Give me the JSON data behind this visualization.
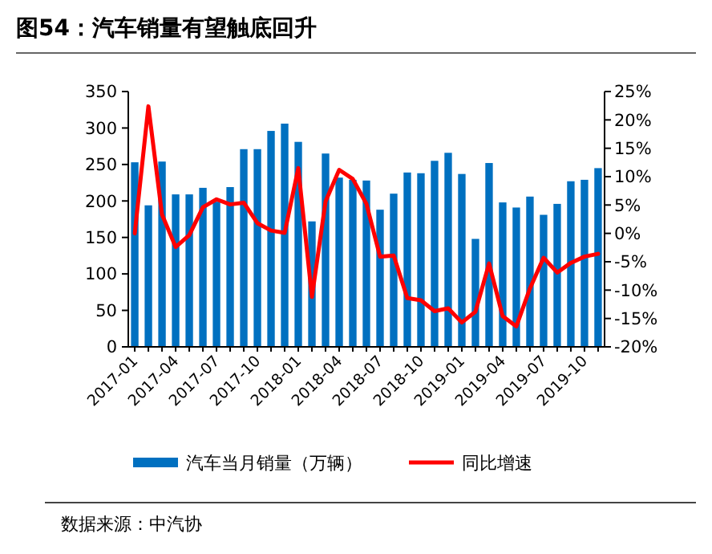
{
  "chart_data": {
    "type": "bar",
    "title": "图54：汽车销量有望触底回升",
    "categories": [
      "2017-01",
      null,
      null,
      "2017-04",
      null,
      null,
      "2017-07",
      null,
      null,
      "2017-10",
      null,
      null,
      "2018-01",
      null,
      null,
      "2018-04",
      null,
      null,
      "2018-07",
      null,
      null,
      "2018-10",
      null,
      null,
      "2019-01",
      null,
      null,
      "2019-04",
      null,
      null,
      "2019-07",
      null,
      null,
      "2019-10",
      null
    ],
    "series": [
      {
        "name": "汽车当月销量（万辆）",
        "color": "#0070c0",
        "values": [
          253,
          194,
          254,
          209,
          209,
          218,
          199,
          219,
          271,
          271,
          296,
          306,
          281,
          172,
          265,
          232,
          229,
          228,
          188,
          210,
          239,
          238,
          255,
          266,
          237,
          148,
          252,
          198,
          191,
          206,
          181,
          196,
          227,
          229,
          245
        ]
      },
      {
        "name": "同比增速",
        "type": "line",
        "axis": "y2",
        "color": "#ff0000",
        "values": [
          0,
          22.4,
          3.3,
          -2.4,
          -0.3,
          4.6,
          6.0,
          5.1,
          5.4,
          1.8,
          0.5,
          0.1,
          11.5,
          -11.2,
          5.6,
          11.2,
          9.6,
          5.2,
          -4.1,
          -3.9,
          -11.4,
          -11.8,
          -13.7,
          -13.2,
          -15.7,
          -13.8,
          -5.3,
          -14.6,
          -16.4,
          -9.7,
          -4.3,
          -6.9,
          -5.2,
          -4.1,
          -3.6
        ]
      }
    ],
    "ylim": [
      0,
      350
    ],
    "yticks": [
      0,
      50,
      100,
      150,
      200,
      250,
      300,
      350
    ],
    "y2lim": [
      -20,
      25
    ],
    "y2ticks": [
      {
        "value": -20,
        "label": "-20%"
      },
      {
        "value": -15,
        "label": "-15%"
      },
      {
        "value": -10,
        "label": "-10%"
      },
      {
        "value": -5,
        "label": "-5%"
      },
      {
        "value": 0,
        "label": "0%"
      },
      {
        "value": 5,
        "label": "5%"
      },
      {
        "value": 10,
        "label": "10%"
      },
      {
        "value": 15,
        "label": "15%"
      },
      {
        "value": 20,
        "label": "20%"
      },
      {
        "value": 25,
        "label": "25%"
      }
    ],
    "legend": "bottom",
    "marker": "none",
    "line_style": "solid",
    "annotations": [
      "数据来源：中汽协"
    ]
  }
}
